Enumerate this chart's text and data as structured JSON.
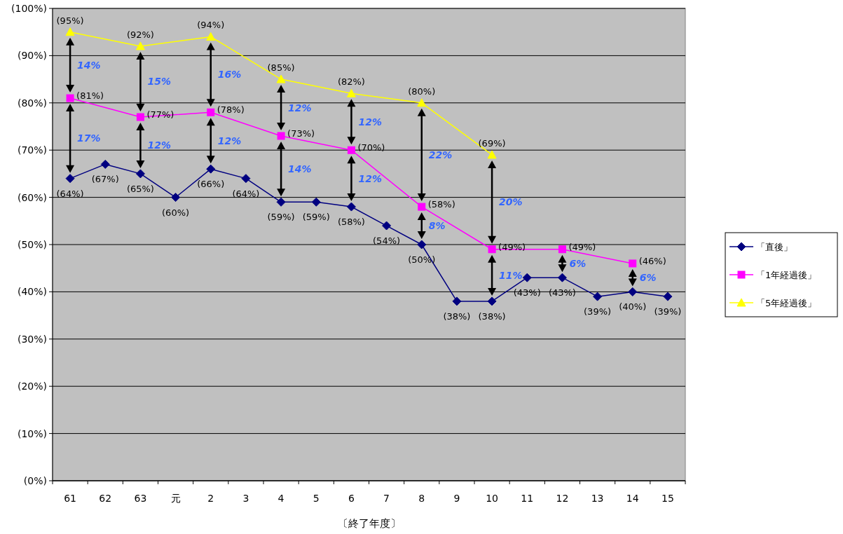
{
  "chart_data": {
    "type": "line",
    "xlabel": "〔終了年度〕",
    "categories": [
      "61",
      "62",
      "63",
      "元",
      "2",
      "3",
      "4",
      "5",
      "6",
      "7",
      "8",
      "9",
      "10",
      "11",
      "12",
      "13",
      "14",
      "15"
    ],
    "series": [
      {
        "name": "「直後」",
        "color": "#000080",
        "marker": "diamond",
        "values": [
          64,
          67,
          65,
          60,
          66,
          64,
          59,
          59,
          58,
          54,
          50,
          38,
          38,
          43,
          43,
          39,
          40,
          39
        ],
        "value_labels": [
          "(64%)",
          "(67%)",
          "(65%)",
          "(60%)",
          "(66%)",
          "(64%)",
          "(59%)",
          "(59%)",
          "(58%)",
          "(54%)",
          "(50%)",
          "(38%)",
          "(38%)",
          "(43%)",
          "(43%)",
          "(39%)",
          "(40%)",
          "(39%)"
        ]
      },
      {
        "name": "「1年経過後」",
        "color": "#ff00ff",
        "marker": "square",
        "values": [
          81,
          null,
          77,
          null,
          78,
          null,
          73,
          null,
          70,
          null,
          58,
          null,
          49,
          null,
          49,
          null,
          46,
          null
        ],
        "value_labels": [
          "(81%)",
          null,
          "(77%)",
          null,
          "(78%)",
          null,
          "(73%)",
          null,
          "(70%)",
          null,
          "(58%)",
          null,
          "(49%)",
          null,
          "(49%)",
          null,
          "(46%)",
          null
        ]
      },
      {
        "name": "「5年経過後」",
        "color": "#ffff00",
        "marker": "triangle",
        "values": [
          95,
          null,
          92,
          null,
          94,
          null,
          85,
          null,
          82,
          null,
          80,
          null,
          69,
          null,
          null,
          null,
          null,
          null
        ],
        "value_labels": [
          "(95%)",
          null,
          "(92%)",
          null,
          "(94%)",
          null,
          "(85%)",
          null,
          "(82%)",
          null,
          "(80%)",
          null,
          "(69%)",
          null,
          null,
          null,
          null,
          null
        ]
      }
    ],
    "ylim": [
      0,
      100
    ],
    "yticks": [
      {
        "value": 0,
        "label": "(0%)"
      },
      {
        "value": 10,
        "label": "(10%)"
      },
      {
        "value": 20,
        "label": "(20%)"
      },
      {
        "value": 30,
        "label": "(30%)"
      },
      {
        "value": 40,
        "label": "(40%)"
      },
      {
        "value": 50,
        "label": "(50%)"
      },
      {
        "value": 60,
        "label": "(60%)"
      },
      {
        "value": 70,
        "label": "(70%)"
      },
      {
        "value": 80,
        "label": "(80%)"
      },
      {
        "value": 90,
        "label": "(90%)"
      },
      {
        "value": 100,
        "label": "(100%)"
      }
    ],
    "grid": "y",
    "legend": "right",
    "annotations": [
      "14%",
      "17%",
      "15%",
      "12%",
      "16%",
      "12%",
      "12%",
      "14%",
      "12%",
      "12%",
      "22%",
      "8%",
      "20%",
      "11%",
      "6%",
      "6%"
    ]
  }
}
